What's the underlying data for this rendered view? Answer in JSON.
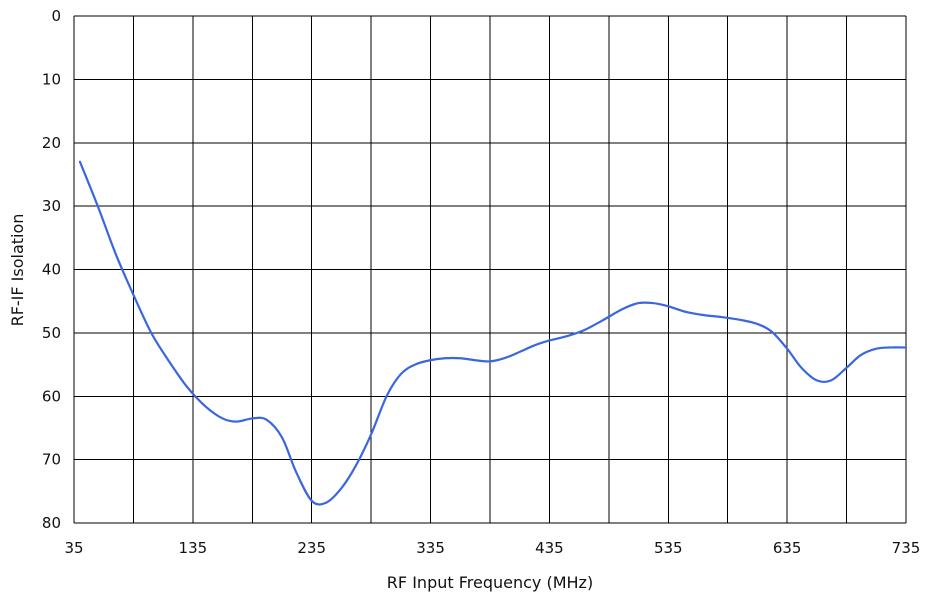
{
  "chart_data": {
    "type": "line",
    "xlabel": "RF Input Frequency (MHz)",
    "ylabel": "RF-IF Isolation",
    "xlim": [
      35,
      735
    ],
    "ylim": [
      0,
      80
    ],
    "y_inverted": true,
    "grid": true,
    "x_ticks": [
      35,
      135,
      235,
      335,
      435,
      535,
      635,
      735
    ],
    "y_ticks": [
      0,
      10,
      20,
      30,
      40,
      50,
      60,
      70,
      80
    ],
    "grid_x": [
      35,
      85,
      135,
      185,
      235,
      285,
      335,
      385,
      435,
      485,
      535,
      585,
      635,
      685,
      735
    ],
    "line_color": "#3a66e0",
    "series": [
      {
        "x": [
          40,
          55,
          70,
          85,
          100,
          115,
          130,
          145,
          160,
          172,
          185,
          197,
          210,
          222,
          235,
          247,
          260,
          272,
          285,
          298,
          310,
          322,
          335,
          347,
          360,
          372,
          385,
          397,
          410,
          422,
          435,
          450,
          465,
          480,
          497,
          510,
          522,
          535,
          550,
          565,
          580,
          597,
          610,
          622,
          635,
          647,
          660,
          672,
          685,
          697,
          710,
          722,
          735
        ],
        "y": [
          23,
          30,
          37.5,
          44,
          50,
          54.5,
          58.5,
          61.5,
          63.5,
          64,
          63.5,
          63.7,
          66.5,
          72,
          76.5,
          76.8,
          74.5,
          71,
          66,
          60,
          56.5,
          55,
          54.3,
          54,
          54,
          54.3,
          54.5,
          54,
          53,
          52,
          51.2,
          50.5,
          49.5,
          48,
          46.2,
          45.3,
          45.3,
          45.8,
          46.7,
          47.2,
          47.5,
          48,
          48.6,
          49.8,
          52.5,
          55.5,
          57.5,
          57.5,
          55.5,
          53.5,
          52.5,
          52.3,
          52.3
        ]
      }
    ]
  }
}
